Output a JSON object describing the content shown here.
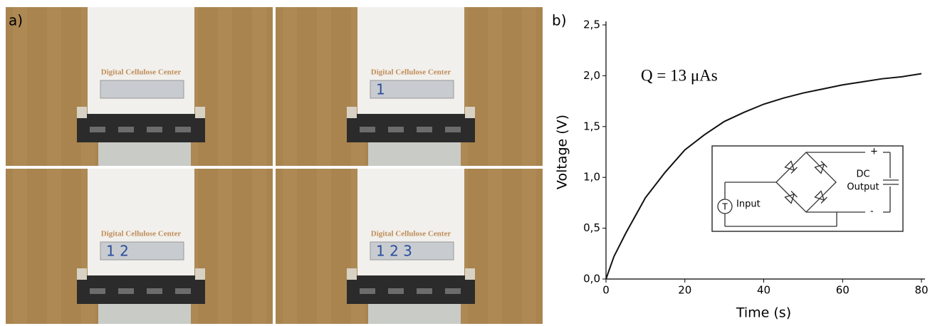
{
  "panel_a": {
    "label": "a)",
    "photos": [
      {
        "brand": "Digital Cellulose Center"
      },
      {
        "brand": "Digital Cellulose Center",
        "display": "1"
      },
      {
        "brand": "Digital Cellulose Center",
        "display": "1 2"
      },
      {
        "brand": "Digital Cellulose Center",
        "display": "1 2 3"
      }
    ]
  },
  "chart_data": {
    "type": "line",
    "panel_label": "b)",
    "x_label": "Time (s)",
    "y_label": "Voltage (V)",
    "annotation": "Q = 13 μAs",
    "x": [
      0,
      2,
      5,
      10,
      15,
      20,
      25,
      30,
      35,
      40,
      45,
      50,
      55,
      60,
      65,
      70,
      75,
      80
    ],
    "values": [
      0,
      0.22,
      0.45,
      0.8,
      1.05,
      1.27,
      1.42,
      1.55,
      1.64,
      1.72,
      1.78,
      1.83,
      1.87,
      1.91,
      1.94,
      1.97,
      1.99,
      2.02
    ],
    "color": "#111111",
    "xlim": [
      0,
      80
    ],
    "xticks": [
      0,
      20,
      40,
      60,
      80
    ],
    "ylim": [
      0,
      2.5
    ],
    "yticks": [
      {
        "value": 0,
        "label": "0,0"
      },
      {
        "value": 0.5,
        "label": "0,5"
      },
      {
        "value": 1,
        "label": "1,0"
      },
      {
        "value": 1.5,
        "label": "1,5"
      },
      {
        "value": 2,
        "label": "2,0"
      },
      {
        "value": 2.5,
        "label": "2,5"
      }
    ],
    "inset": {
      "input": "Input",
      "source": "T",
      "dc": "DC",
      "output": "Output",
      "plus": "+",
      "minus": "-"
    }
  }
}
